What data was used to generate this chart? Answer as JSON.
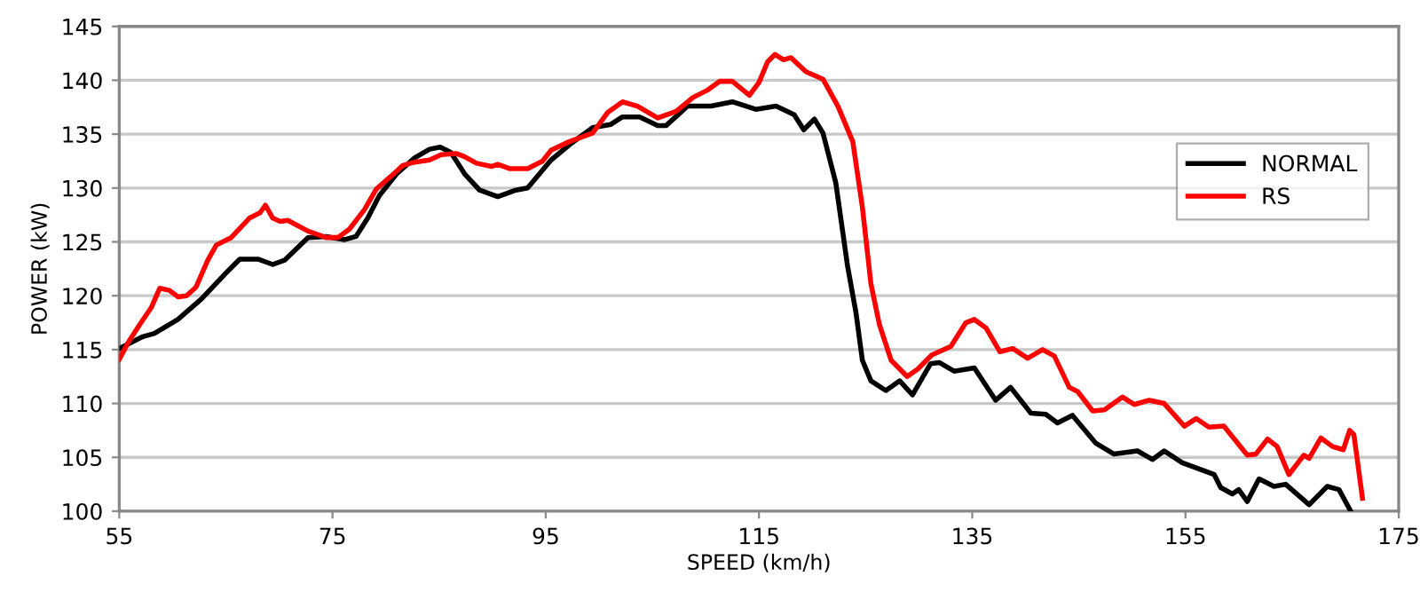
{
  "chart_data": {
    "type": "line",
    "xlabel": "SPEED (km/h)",
    "ylabel": "POWER (kW)",
    "xlim": [
      55,
      175
    ],
    "xticks": [
      55,
      75,
      95,
      115,
      135,
      155,
      175
    ],
    "ylim": [
      100,
      145
    ],
    "yticks": [
      100,
      105,
      110,
      115,
      120,
      125,
      130,
      135,
      140,
      145
    ],
    "grid": "y",
    "legend": "right",
    "line_style": "solid",
    "marker": "none",
    "series": [
      {
        "name": "NORMAL",
        "color": "#000000",
        "x": [
          55,
          57.2,
          58.3,
          60.5,
          62.7,
          65,
          66.3,
          68,
          69.4,
          70.5,
          72.7,
          74.4,
          76.1,
          77.2,
          78.3,
          79.4,
          81,
          82.7,
          84.1,
          85.1,
          86.1,
          87.4,
          88.8,
          90.5,
          92.2,
          93.3,
          95.5,
          97.2,
          99.4,
          101.1,
          102.2,
          103.8,
          105.5,
          106.3,
          108.3,
          110.5,
          112.5,
          114.7,
          116.6,
          118.3,
          119.2,
          120.2,
          121,
          122.2,
          123.3,
          124.1,
          124.7,
          125.5,
          126.9,
          128.2,
          129.4,
          131.1,
          131.9,
          133.3,
          135.2,
          137.2,
          138.6,
          140.5,
          141.9,
          143,
          144.4,
          146.6,
          148.3,
          150.5,
          151.9,
          153,
          154.7,
          157.7,
          158.3,
          159.4,
          160,
          160.8,
          161.9,
          163.3,
          164.4,
          166.6,
          168.3,
          169.4,
          170.5
        ],
        "values": [
          115.1,
          116.2,
          116.5,
          117.8,
          119.7,
          122.1,
          123.4,
          123.4,
          122.9,
          123.3,
          125.4,
          125.5,
          125.2,
          125.5,
          127.2,
          129.3,
          131.3,
          132.8,
          133.6,
          133.8,
          133.3,
          131.3,
          129.8,
          129.2,
          129.8,
          130,
          132.6,
          134,
          135.6,
          135.9,
          136.6,
          136.6,
          135.8,
          135.8,
          137.6,
          137.6,
          138,
          137.3,
          137.6,
          136.8,
          135.4,
          136.4,
          135.1,
          130.5,
          122.8,
          118.4,
          114,
          112.1,
          111.2,
          112.1,
          110.8,
          113.7,
          113.8,
          113,
          113.3,
          110.3,
          111.5,
          109.1,
          109,
          108.2,
          108.9,
          106.3,
          105.3,
          105.6,
          104.8,
          105.6,
          104.5,
          103.4,
          102.2,
          101.6,
          102,
          100.9,
          103,
          102.3,
          102.5,
          100.6,
          102.3,
          102,
          100
        ]
      },
      {
        "name": "RS",
        "color": "#ff0000",
        "x": [
          55,
          55.8,
          56.9,
          58,
          58.8,
          59.7,
          60.5,
          61.3,
          62.2,
          63.3,
          64.1,
          65.5,
          67.2,
          68.2,
          68.7,
          69.4,
          70.1,
          70.8,
          72.7,
          74.4,
          75.5,
          76.6,
          78,
          79.1,
          80.5,
          81.6,
          82.7,
          84.1,
          85.2,
          86.6,
          87.4,
          88.5,
          89.9,
          90.5,
          91.6,
          93.3,
          94.7,
          95.5,
          97.2,
          99.4,
          100.8,
          102.2,
          103.6,
          105.5,
          107.2,
          108.8,
          110.2,
          111.3,
          112.5,
          114.1,
          115,
          115.8,
          116.5,
          117.3,
          118,
          119.4,
          121,
          122.4,
          123.8,
          124.7,
          125.5,
          126.3,
          127.4,
          128.9,
          129.9,
          131.2,
          133,
          134.4,
          135.2,
          136.3,
          137.6,
          138.8,
          140.2,
          141.6,
          142.7,
          144.1,
          144.9,
          146.3,
          147.4,
          149.1,
          150.2,
          151.6,
          153,
          154.9,
          156,
          157.2,
          158.6,
          160.8,
          161.6,
          162.7,
          163.6,
          164.7,
          166.1,
          166.6,
          167.7,
          168.8,
          169.8,
          170.4,
          170.8,
          171.6
        ],
        "values": [
          114.1,
          115.6,
          117.3,
          118.9,
          120.7,
          120.5,
          119.9,
          120,
          120.8,
          123.3,
          124.7,
          125.4,
          127.2,
          127.7,
          128.4,
          127.2,
          126.9,
          127,
          126,
          125.4,
          125.4,
          126.2,
          128,
          129.9,
          131.1,
          132.1,
          132.4,
          132.6,
          133.1,
          133.2,
          132.9,
          132.3,
          132,
          132.2,
          131.8,
          131.8,
          132.5,
          133.5,
          134.3,
          135.1,
          137,
          138,
          137.6,
          136.5,
          137.1,
          138.4,
          139.1,
          139.9,
          139.9,
          138.6,
          139.8,
          141.7,
          142.4,
          141.9,
          142.1,
          140.8,
          140.1,
          137.6,
          134.3,
          128.2,
          121.1,
          117.3,
          114,
          112.5,
          113.2,
          114.5,
          115.3,
          117.5,
          117.8,
          117,
          114.8,
          115.1,
          114.2,
          115,
          114.4,
          111.5,
          111.1,
          109.3,
          109.4,
          110.6,
          109.9,
          110.3,
          110,
          107.9,
          108.6,
          107.8,
          107.9,
          105.2,
          105.3,
          106.7,
          106,
          103.4,
          105.2,
          104.9,
          106.8,
          106,
          105.7,
          107.5,
          107.1,
          101.2
        ]
      }
    ]
  }
}
